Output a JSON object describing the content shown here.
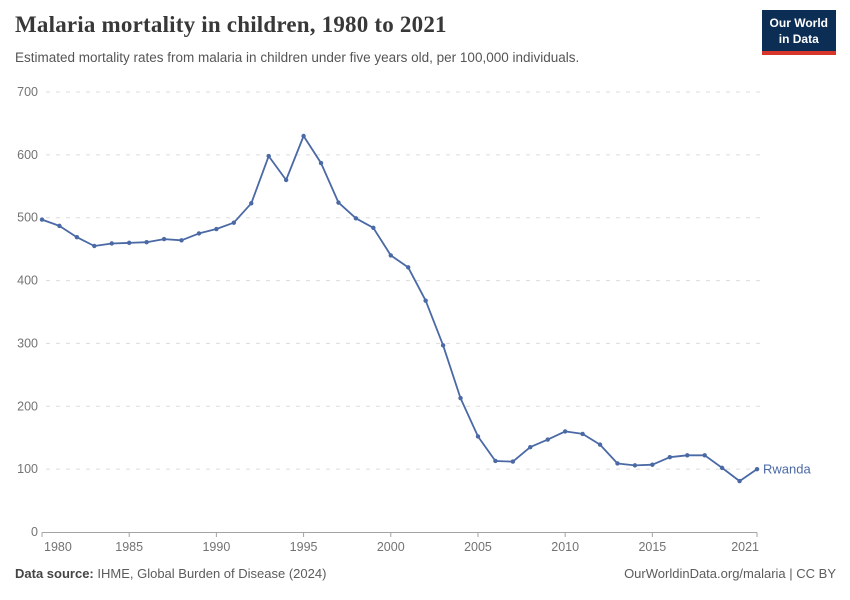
{
  "header": {
    "title": "Malaria mortality in children, 1980 to 2021",
    "subtitle": "Estimated mortality rates from malaria in children under five years old, per 100,000 individuals.",
    "logo": {
      "line1": "Our World",
      "line2": "in Data"
    }
  },
  "chart_data": {
    "type": "line",
    "title": "Malaria mortality in children, 1980 to 2021",
    "xlabel": "",
    "ylabel": "",
    "xlim": [
      1980,
      2021
    ],
    "ylim": [
      0,
      700
    ],
    "x_ticks": [
      1980,
      1985,
      1990,
      1995,
      2000,
      2005,
      2010,
      2015,
      2021
    ],
    "y_ticks": [
      0,
      100,
      200,
      300,
      400,
      500,
      600,
      700
    ],
    "grid": "horizontal-dashed",
    "legend_position": "end-of-line-label",
    "x": [
      1980,
      1981,
      1982,
      1983,
      1984,
      1985,
      1986,
      1987,
      1988,
      1989,
      1990,
      1991,
      1992,
      1993,
      1994,
      1995,
      1996,
      1997,
      1998,
      1999,
      2000,
      2001,
      2002,
      2003,
      2004,
      2005,
      2006,
      2007,
      2008,
      2009,
      2010,
      2011,
      2012,
      2013,
      2014,
      2015,
      2016,
      2017,
      2018,
      2019,
      2020,
      2021
    ],
    "series": [
      {
        "name": "Rwanda",
        "color": "#4a69a5",
        "values": [
          497,
          487,
          469,
          455,
          459,
          460,
          461,
          466,
          464,
          475,
          482,
          492,
          523,
          598,
          560,
          630,
          587,
          524,
          499,
          484,
          440,
          421,
          368,
          297,
          213,
          152,
          113,
          112,
          135,
          147,
          160,
          156,
          139,
          109,
          106,
          107,
          119,
          122,
          122,
          102,
          81,
          100
        ]
      }
    ]
  },
  "footer": {
    "source_label": "Data source:",
    "source_text": " IHME, Global Burden of Disease (2024)",
    "credit": "OurWorldinData.org/malaria | CC BY"
  },
  "colors": {
    "line": "#4a69a5",
    "gridline": "#dcdcdc",
    "axis": "#a3a3a3",
    "tick_label": "#737373",
    "logo_bg": "#0d2e54",
    "logo_bar": "#d8352a"
  }
}
